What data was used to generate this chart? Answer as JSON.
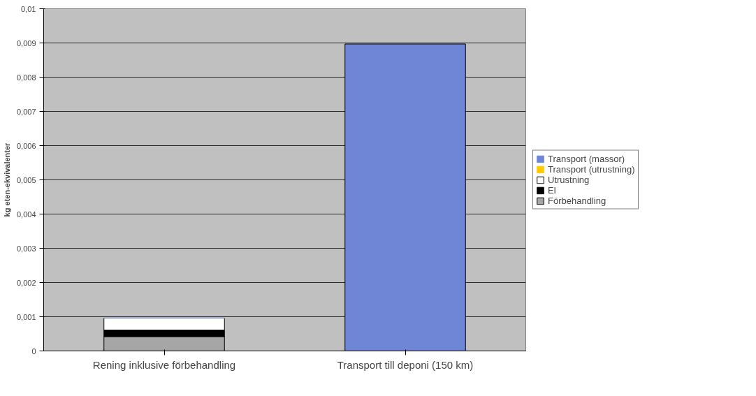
{
  "chart_data": {
    "type": "bar",
    "stacked": true,
    "ylabel": "kg eten-ekvivalenter",
    "categories": [
      "Rening inklusive förbehandling",
      "Transport till deponi (150 km)"
    ],
    "series": [
      {
        "name": "Förbehandling",
        "color": "#a6a6a6",
        "values": [
          0.00042,
          0
        ]
      },
      {
        "name": "El",
        "color": "#000000",
        "values": [
          0.00019,
          0
        ]
      },
      {
        "name": "Utrustning",
        "color": "#ffffff",
        "values": [
          0.00035,
          0
        ]
      },
      {
        "name": "Transport (utrustning)",
        "color": "#ffcc00",
        "values": [
          0,
          0
        ]
      },
      {
        "name": "Transport (massor)",
        "color": "#6f86d6",
        "values": [
          0,
          0.00897
        ]
      }
    ],
    "ylim": [
      0,
      0.01
    ],
    "yticks": [
      0,
      {
        "value": 0.001,
        "label": "0,001"
      },
      {
        "value": 0.002,
        "label": "0,002"
      },
      {
        "value": 0.003,
        "label": "0,003"
      },
      {
        "value": 0.004,
        "label": "0,004"
      },
      {
        "value": 0.005,
        "label": "0,005"
      },
      {
        "value": 0.006,
        "label": "0,006"
      },
      {
        "value": 0.007,
        "label": "0,007"
      },
      {
        "value": 0.008,
        "label": "0,008"
      },
      {
        "value": 0.009,
        "label": "0,009"
      },
      {
        "value": 0.01,
        "label": "0,01"
      }
    ],
    "grid": "y",
    "legend": "right"
  }
}
